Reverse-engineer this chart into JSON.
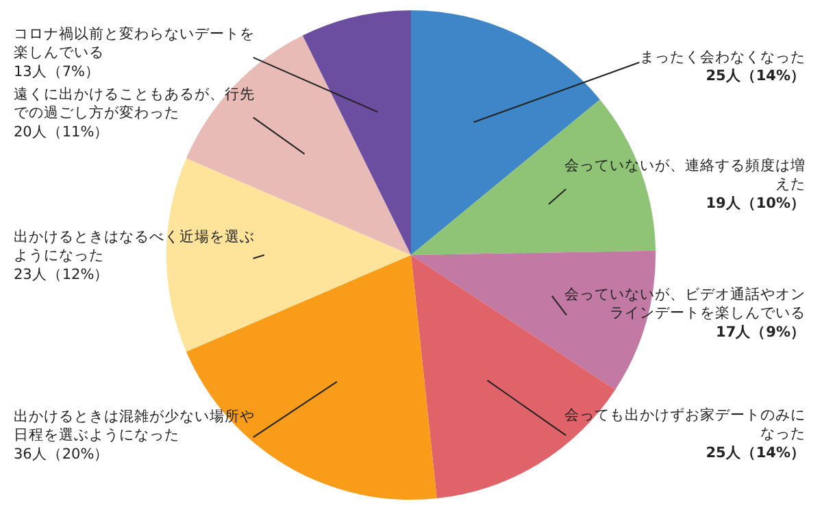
{
  "chart_data": {
    "type": "pie",
    "categories": [
      "まったく会わなくなった",
      "会っていないが、連絡する頻度は増えた",
      "会っていないが、ビデオ通話やオンラインデートを楽しんでいる",
      "会っても出かけずお家デートのみになった",
      "出かけるときは混雑が少ない場所や日程を選ぶようになった",
      "出かけるときはなるべく近場を選ぶようになった",
      "遠くに出かけることもあるが、行先での過ごし方が変わった",
      "コロナ禍以前と変わらないデートを楽しんでいる"
    ],
    "values": [
      25,
      19,
      17,
      25,
      36,
      23,
      20,
      13
    ],
    "value_labels": [
      "25人（14%）",
      "19人（10%）",
      "17人（9%）",
      "25人（14%）",
      "36人（20%）",
      "23人（12%）",
      "20人（11%）",
      "13人（7%）"
    ],
    "colors": [
      "#3f86c8",
      "#8fc476",
      "#c27aa5",
      "#e0636a",
      "#f89c1a",
      "#fde49a",
      "#e8bbb6",
      "#6b4ea0"
    ]
  }
}
